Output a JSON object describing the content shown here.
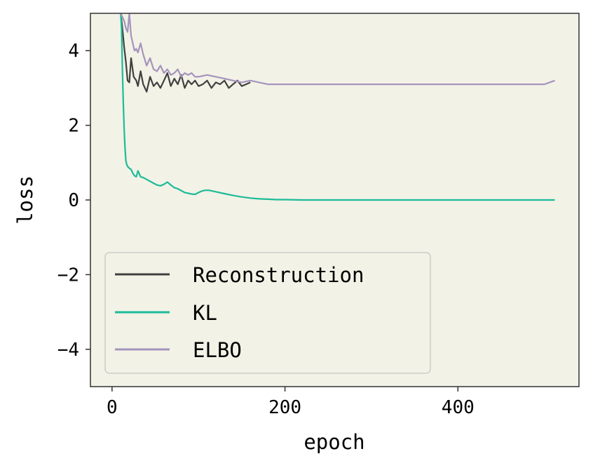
{
  "chart_data": {
    "type": "line",
    "title": "",
    "xlabel": "epoch",
    "ylabel": "loss",
    "xlim": [
      -25,
      540
    ],
    "ylim": [
      -5,
      5
    ],
    "xticks": [
      0,
      200,
      400
    ],
    "xtick_labels": [
      "0",
      "200",
      "400"
    ],
    "yticks": [
      -4,
      -2,
      0,
      2,
      4
    ],
    "ytick_labels": [
      "−4",
      "−2",
      "0",
      "2",
      "4"
    ],
    "background": "#f2f2e6",
    "legend_position": "lower-left",
    "series": [
      {
        "name": "Reconstruction",
        "color": "#404040",
        "x": [
          10,
          12,
          14,
          16,
          18,
          20,
          22,
          25,
          28,
          30,
          33,
          36,
          40,
          44,
          48,
          52,
          56,
          60,
          64,
          68,
          72,
          76,
          80,
          84,
          88,
          92,
          96,
          100,
          105,
          110,
          115,
          120,
          125,
          130,
          135,
          140,
          145,
          150,
          155,
          160
        ],
        "y": [
          5.0,
          4.6,
          4.1,
          3.7,
          3.2,
          3.15,
          3.8,
          3.3,
          3.2,
          3.05,
          3.45,
          3.1,
          2.9,
          3.3,
          3.05,
          3.15,
          3.0,
          3.2,
          3.4,
          3.05,
          3.25,
          3.1,
          3.35,
          3.0,
          3.2,
          3.1,
          3.2,
          3.05,
          3.1,
          3.2,
          3.0,
          3.15,
          3.1,
          3.2,
          3.0,
          3.1,
          3.2,
          3.05,
          3.1,
          3.15
        ]
      },
      {
        "name": "KL",
        "color": "#1dbb99",
        "x": [
          10,
          11,
          12,
          13,
          14,
          15,
          16,
          17,
          18,
          20,
          22,
          24,
          26,
          28,
          30,
          33,
          36,
          40,
          44,
          48,
          52,
          56,
          60,
          64,
          68,
          72,
          76,
          80,
          84,
          88,
          92,
          96,
          100,
          104,
          108,
          112,
          120,
          130,
          140,
          150,
          160,
          170,
          180,
          190,
          200,
          220,
          250,
          300,
          350,
          400,
          450,
          500,
          512
        ],
        "y": [
          5.0,
          4.6,
          3.5,
          2.6,
          1.9,
          1.4,
          1.05,
          0.95,
          0.9,
          0.85,
          0.82,
          0.72,
          0.65,
          0.62,
          0.78,
          0.62,
          0.6,
          0.55,
          0.5,
          0.45,
          0.4,
          0.38,
          0.42,
          0.48,
          0.4,
          0.33,
          0.3,
          0.25,
          0.2,
          0.18,
          0.16,
          0.15,
          0.2,
          0.24,
          0.26,
          0.26,
          0.22,
          0.17,
          0.12,
          0.08,
          0.05,
          0.03,
          0.02,
          0.01,
          0.01,
          0.0,
          0.0,
          0.0,
          0.0,
          0.0,
          0.0,
          0.0,
          0.0
        ]
      },
      {
        "name": "ELBO",
        "color": "#a594bd",
        "x": [
          10,
          12,
          14,
          16,
          18,
          20,
          22,
          24,
          26,
          28,
          30,
          33,
          36,
          40,
          44,
          48,
          52,
          56,
          60,
          64,
          68,
          72,
          76,
          80,
          84,
          88,
          92,
          96,
          100,
          110,
          120,
          130,
          140,
          150,
          160,
          180,
          200,
          220,
          240,
          260,
          280,
          300,
          320,
          340,
          360,
          380,
          400,
          420,
          440,
          460,
          480,
          500,
          512
        ],
        "y": [
          5.0,
          4.9,
          4.8,
          4.6,
          4.5,
          5.0,
          4.4,
          4.2,
          4.0,
          4.05,
          3.95,
          4.2,
          3.9,
          3.6,
          3.8,
          3.5,
          3.45,
          3.6,
          3.4,
          3.5,
          3.35,
          3.4,
          3.5,
          3.3,
          3.4,
          3.35,
          3.4,
          3.3,
          3.3,
          3.35,
          3.3,
          3.25,
          3.2,
          3.15,
          3.2,
          3.1,
          3.1,
          3.1,
          3.1,
          3.1,
          3.1,
          3.1,
          3.1,
          3.1,
          3.1,
          3.1,
          3.1,
          3.1,
          3.1,
          3.1,
          3.1,
          3.1,
          3.2
        ]
      }
    ]
  }
}
